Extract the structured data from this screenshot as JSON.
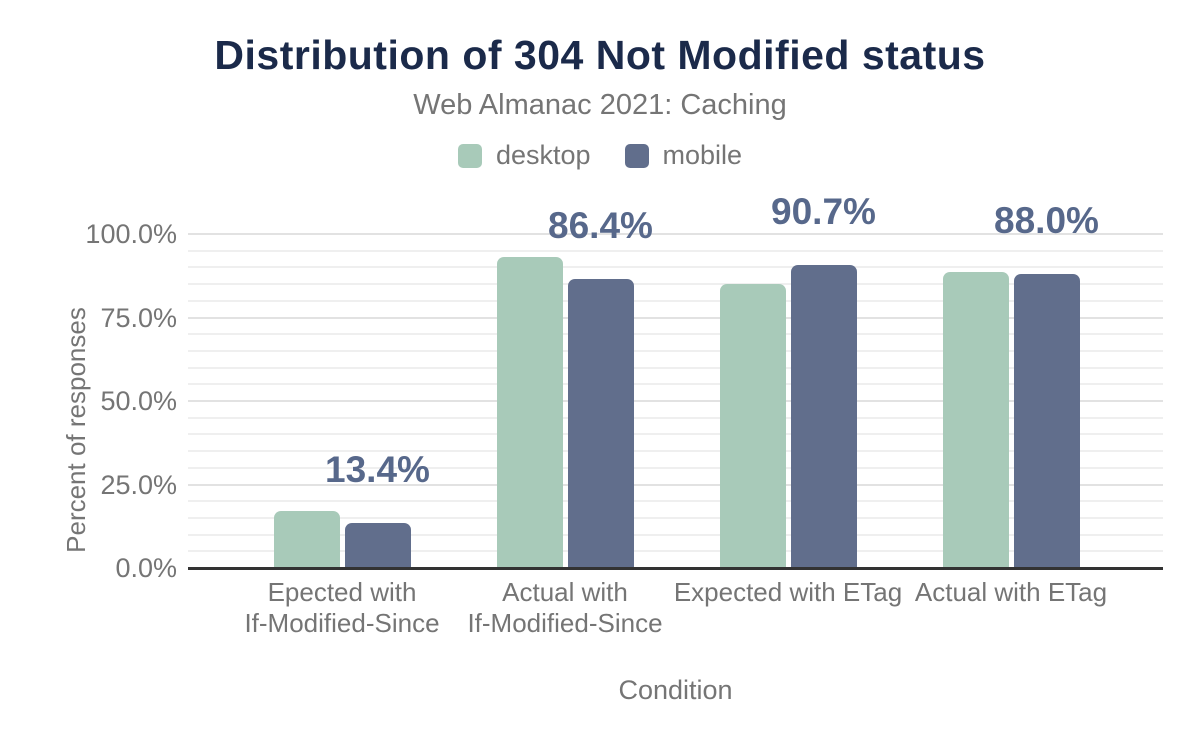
{
  "chart_data": {
    "type": "bar",
    "title": "Distribution of 304 Not Modified status",
    "subtitle": "Web Almanac 2021: Caching",
    "categories": [
      "Epected with\nIf-Modified-Since",
      "Actual with\nIf-Modified-Since",
      "Expected with ETag",
      "Actual with ETag"
    ],
    "series": [
      {
        "name": "desktop",
        "color": "#a8cab9",
        "values": [
          17.2,
          93.2,
          84.9,
          88.6
        ]
      },
      {
        "name": "mobile",
        "color": "#616e8c",
        "values": [
          13.4,
          86.4,
          90.7,
          88.0
        ]
      }
    ],
    "annotations": {
      "attached_to_series": "mobile",
      "labels": [
        "13.4%",
        "86.4%",
        "90.7%",
        "88.0%"
      ]
    },
    "xaxis": {
      "title": "Condition"
    },
    "yaxis": {
      "title": "Percent of responses",
      "ticks": [
        {
          "value": 0,
          "label": "0.0%"
        },
        {
          "value": 25,
          "label": "25.0%"
        },
        {
          "value": 50,
          "label": "50.0%"
        },
        {
          "value": 75,
          "label": "75.0%"
        },
        {
          "value": 100,
          "label": "100.0%"
        }
      ],
      "min": 0,
      "max": 100
    },
    "grid": {
      "major_step_pct": 25,
      "minor_step_pct": 5,
      "visible": true
    },
    "legend_position": "top"
  },
  "colors": {
    "title": "#1b2a4a",
    "subtitle": "#757575",
    "axis_text": "#757575",
    "annotation": "#57688b",
    "axis_line": "#333333",
    "grid_major": "#e2e2e2",
    "grid_minor": "#efefef",
    "background": "#ffffff"
  }
}
